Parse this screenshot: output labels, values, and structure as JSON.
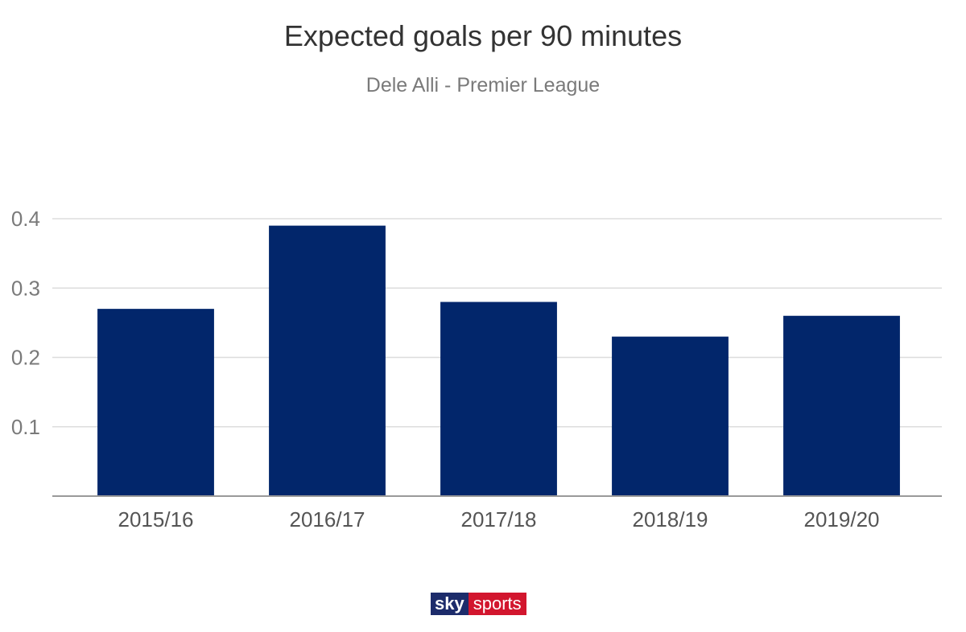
{
  "chart_data": {
    "type": "bar",
    "title": "Expected goals per 90 minutes",
    "subtitle": "Dele Alli - Premier League",
    "categories": [
      "2015/16",
      "2016/17",
      "2017/18",
      "2018/19",
      "2019/20"
    ],
    "values": [
      0.27,
      0.39,
      0.28,
      0.23,
      0.26
    ],
    "ylim": [
      0,
      0.4
    ],
    "yticks": [
      "0.1",
      "0.2",
      "0.3",
      "0.4"
    ],
    "grid": true,
    "bar_color": "#02266b"
  },
  "branding": {
    "sky": "sky",
    "sports": "sports"
  },
  "colors": {
    "sky_blue": "#1d2c6b",
    "sports_red": "#d2162e"
  }
}
